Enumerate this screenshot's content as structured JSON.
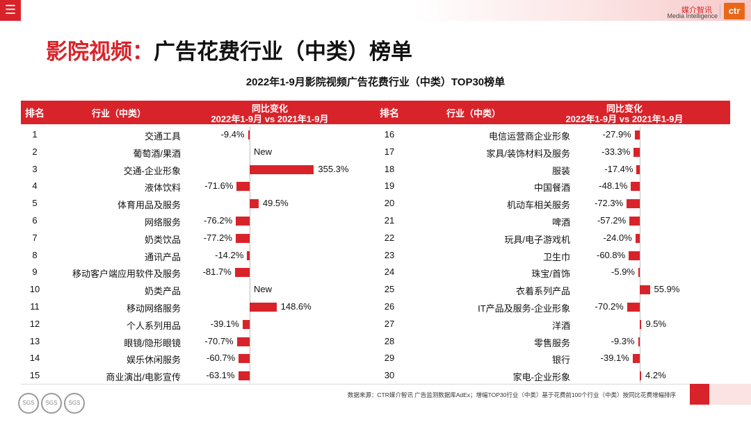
{
  "header": {
    "menu_icon": "menu-icon",
    "logo_cn": "媒介智讯",
    "logo_en": "Media Intelligence",
    "logo_mark": "ctr"
  },
  "page_title": {
    "part1": "影院视频：",
    "part2": "广告花费行业（中类）榜单"
  },
  "chart_data": {
    "type": "bar",
    "title": "2022年1-9月影院视频广告花费行业（中类）TOP30榜单",
    "columns": {
      "rank": "排名",
      "industry": "行业（中类）",
      "change_line1": "同比变化",
      "change_line2": "2022年1-9月 vs 2021年1-9月"
    },
    "rows": [
      {
        "rank": "1",
        "industry": "交通工具",
        "value": -9.4,
        "label": "-9.4%"
      },
      {
        "rank": "2",
        "industry": "葡萄酒/果酒",
        "value": null,
        "label": "New"
      },
      {
        "rank": "3",
        "industry": "交通-企业形象",
        "value": 355.3,
        "label": "355.3%"
      },
      {
        "rank": "4",
        "industry": "液体饮料",
        "value": -71.6,
        "label": "-71.6%"
      },
      {
        "rank": "5",
        "industry": "体育用品及服务",
        "value": 49.5,
        "label": "49.5%"
      },
      {
        "rank": "6",
        "industry": "网络服务",
        "value": -76.2,
        "label": "-76.2%"
      },
      {
        "rank": "7",
        "industry": "奶类饮品",
        "value": -77.2,
        "label": "-77.2%"
      },
      {
        "rank": "8",
        "industry": "通讯产品",
        "value": -14.2,
        "label": "-14.2%"
      },
      {
        "rank": "9",
        "industry": "移动客户端应用软件及服务",
        "value": -81.7,
        "label": "-81.7%"
      },
      {
        "rank": "10",
        "industry": "奶类产品",
        "value": null,
        "label": "New"
      },
      {
        "rank": "11",
        "industry": "移动网络服务",
        "value": 148.6,
        "label": "148.6%"
      },
      {
        "rank": "12",
        "industry": "个人系列用品",
        "value": -39.1,
        "label": "-39.1%"
      },
      {
        "rank": "13",
        "industry": "眼镜/隐形眼镜",
        "value": -70.7,
        "label": "-70.7%"
      },
      {
        "rank": "14",
        "industry": "娱乐休闲服务",
        "value": -60.7,
        "label": "-60.7%"
      },
      {
        "rank": "15",
        "industry": "商业演出/电影宣传",
        "value": -63.1,
        "label": "-63.1%"
      },
      {
        "rank": "16",
        "industry": "电信运营商企业形象",
        "value": -27.9,
        "label": "-27.9%"
      },
      {
        "rank": "17",
        "industry": "家具/装饰材料及服务",
        "value": -33.3,
        "label": "-33.3%"
      },
      {
        "rank": "18",
        "industry": "服装",
        "value": -17.4,
        "label": "-17.4%"
      },
      {
        "rank": "19",
        "industry": "中国餐酒",
        "value": -48.1,
        "label": "-48.1%"
      },
      {
        "rank": "20",
        "industry": "机动车相关服务",
        "value": -72.3,
        "label": "-72.3%"
      },
      {
        "rank": "21",
        "industry": "啤酒",
        "value": -57.2,
        "label": "-57.2%"
      },
      {
        "rank": "22",
        "industry": "玩具/电子游戏机",
        "value": -24.0,
        "label": "-24.0%"
      },
      {
        "rank": "23",
        "industry": "卫生巾",
        "value": -60.8,
        "label": "-60.8%"
      },
      {
        "rank": "24",
        "industry": "珠宝/首饰",
        "value": -5.9,
        "label": "-5.9%"
      },
      {
        "rank": "25",
        "industry": "衣着系列产品",
        "value": 55.9,
        "label": "55.9%"
      },
      {
        "rank": "26",
        "industry": "IT产品及服务-企业形象",
        "value": -70.2,
        "label": "-70.2%"
      },
      {
        "rank": "27",
        "industry": "洋酒",
        "value": 9.5,
        "label": "9.5%"
      },
      {
        "rank": "28",
        "industry": "零售服务",
        "value": -9.3,
        "label": "-9.3%"
      },
      {
        "rank": "29",
        "industry": "银行",
        "value": -39.1,
        "label": "-39.1%"
      },
      {
        "rank": "30",
        "industry": "家电-企业形象",
        "value": 4.2,
        "label": "4.2%"
      }
    ]
  },
  "footer": {
    "source": "数据来源：CTR媒介智讯 广告监测数据库AdEx；增幅TOP30行业（中类）基于花费前100个行业（中类）按同比花费增幅排序",
    "cert_label": "SGS"
  },
  "colors": {
    "accent": "#d9232a",
    "logo_orange": "#e8681a"
  }
}
